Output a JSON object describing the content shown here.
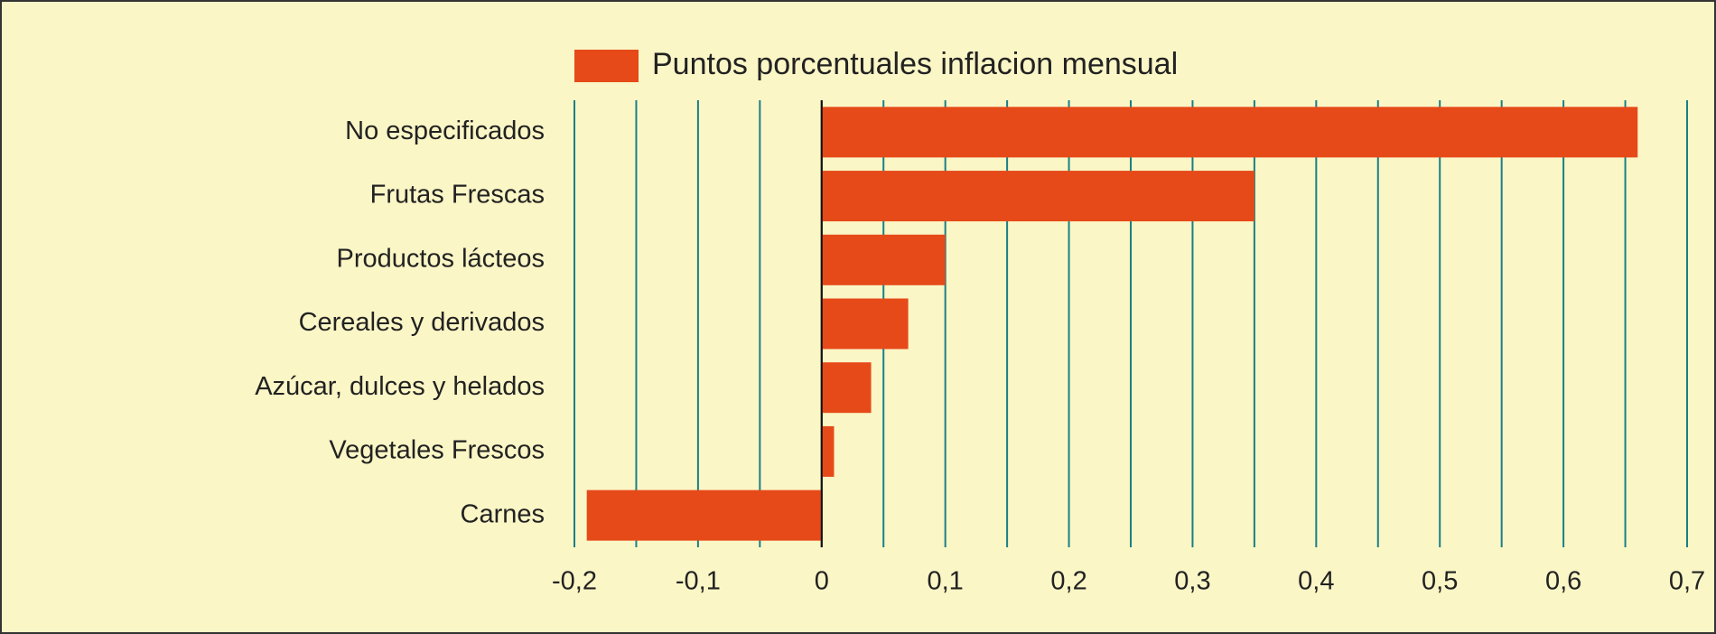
{
  "chart_data": {
    "type": "bar",
    "orientation": "horizontal",
    "categories": [
      "No especificados",
      "Frutas Frescas",
      "Productos lácteos",
      "Cereales y derivados",
      "Azúcar, dulces y helados",
      "Vegetales Frescos",
      "Carnes"
    ],
    "series": [
      {
        "name": "Puntos porcentuales inflacion mensual",
        "color": "#e64a19",
        "values": [
          0.66,
          0.35,
          0.1,
          0.07,
          0.04,
          0.01,
          -0.19
        ]
      }
    ],
    "xlim": [
      -0.2,
      0.7
    ],
    "xticks": [
      {
        "value": -0.2,
        "label": "-0,2"
      },
      {
        "value": -0.1,
        "label": "-0,1"
      },
      0,
      {
        "value": 0.1,
        "label": "0,1"
      },
      {
        "value": 0.2,
        "label": "0,2"
      },
      {
        "value": 0.3,
        "label": "0,3"
      },
      {
        "value": 0.4,
        "label": "0,4"
      },
      {
        "value": 0.5,
        "label": "0,5"
      },
      {
        "value": 0.6,
        "label": "0,6"
      },
      {
        "value": 0.7,
        "label": "0,7"
      }
    ],
    "xminorticks": [
      -0.15,
      -0.05,
      0.05,
      0.15,
      0.25,
      0.35,
      0.45,
      0.55,
      0.65
    ],
    "grid": true,
    "grid_color": "#1a7f86",
    "legend": "top"
  }
}
